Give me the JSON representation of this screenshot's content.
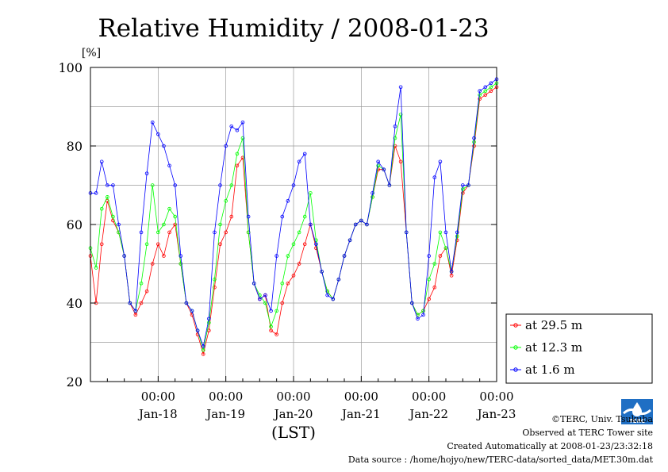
{
  "chart_data": {
    "type": "line",
    "title": "Relative Humidity / 2008-01-23",
    "ylabel": "[%]",
    "xlabel": "(LST)",
    "ylim": [
      20,
      100
    ],
    "xlim": [
      0,
      144
    ],
    "yticks": [
      20,
      40,
      60,
      80,
      100
    ],
    "x_time_labels": [
      "00:00",
      "00:00",
      "00:00",
      "00:00",
      "00:00",
      "00:00"
    ],
    "x_date_labels": [
      "Jan-18",
      "Jan-19",
      "Jan-20",
      "Jan-21",
      "Jan-22",
      "Jan-23"
    ],
    "x_tick_hours": [
      24,
      48,
      72,
      96,
      120,
      144
    ],
    "grid": true,
    "legend_position": "right",
    "series": [
      {
        "name": "at 29.5 m",
        "color": "#ff0000",
        "x": [
          0,
          2,
          4,
          6,
          8,
          10,
          12,
          14,
          16,
          18,
          20,
          22,
          24,
          26,
          28,
          30,
          32,
          34,
          36,
          38,
          40,
          42,
          44,
          46,
          48,
          50,
          52,
          54,
          56,
          58,
          60,
          62,
          64,
          66,
          68,
          70,
          72,
          74,
          76,
          78,
          80,
          82,
          84,
          86,
          88,
          90,
          92,
          94,
          96,
          98,
          100,
          102,
          104,
          106,
          108,
          110,
          112,
          114,
          116,
          118,
          120,
          122,
          124,
          126,
          128,
          130,
          132,
          134,
          136,
          138,
          140,
          142,
          144
        ],
        "y": [
          52,
          40,
          55,
          66,
          61,
          58,
          52,
          40,
          37,
          40,
          43,
          50,
          55,
          52,
          58,
          60,
          50,
          40,
          37,
          32,
          27,
          33,
          44,
          55,
          58,
          62,
          75,
          77,
          58,
          45,
          41,
          42,
          33,
          32,
          40,
          45,
          47,
          50,
          55,
          60,
          54,
          48,
          43,
          41,
          46,
          52,
          56,
          60,
          61,
          60,
          67,
          74,
          74,
          70,
          80,
          76,
          58,
          40,
          37,
          38,
          41,
          44,
          52,
          54,
          47,
          56,
          68,
          70,
          80,
          92,
          93,
          94,
          95
        ]
      },
      {
        "name": "at 12.3 m",
        "color": "#00ff00",
        "x": [
          0,
          2,
          4,
          6,
          8,
          10,
          12,
          14,
          16,
          18,
          20,
          22,
          24,
          26,
          28,
          30,
          32,
          34,
          36,
          38,
          40,
          42,
          44,
          46,
          48,
          50,
          52,
          54,
          56,
          58,
          60,
          62,
          64,
          66,
          68,
          70,
          72,
          74,
          76,
          78,
          80,
          82,
          84,
          86,
          88,
          90,
          92,
          94,
          96,
          98,
          100,
          102,
          104,
          106,
          108,
          110,
          112,
          114,
          116,
          118,
          120,
          122,
          124,
          126,
          128,
          130,
          132,
          134,
          136,
          138,
          140,
          142,
          144
        ],
        "y": [
          54,
          49,
          64,
          67,
          62,
          58,
          52,
          40,
          38,
          45,
          55,
          70,
          58,
          60,
          64,
          62,
          50,
          40,
          38,
          33,
          28,
          35,
          46,
          60,
          66,
          70,
          78,
          82,
          58,
          45,
          42,
          40,
          34,
          38,
          45,
          52,
          55,
          58,
          62,
          68,
          56,
          48,
          43,
          41,
          46,
          52,
          56,
          60,
          61,
          60,
          67,
          75,
          74,
          70,
          82,
          88,
          58,
          40,
          37,
          38,
          46,
          50,
          58,
          54,
          48,
          57,
          69,
          70,
          81,
          93,
          94,
          95,
          96
        ]
      },
      {
        "name": "at 1.6 m",
        "color": "#0000ff",
        "x": [
          0,
          2,
          4,
          6,
          8,
          10,
          12,
          14,
          16,
          18,
          20,
          22,
          24,
          26,
          28,
          30,
          32,
          34,
          36,
          38,
          40,
          42,
          44,
          46,
          48,
          50,
          52,
          54,
          56,
          58,
          60,
          62,
          64,
          66,
          68,
          70,
          72,
          74,
          76,
          78,
          80,
          82,
          84,
          86,
          88,
          90,
          92,
          94,
          96,
          98,
          100,
          102,
          104,
          106,
          108,
          110,
          112,
          114,
          116,
          118,
          120,
          122,
          124,
          126,
          128,
          130,
          132,
          134,
          136,
          138,
          140,
          142,
          144
        ],
        "y": [
          68,
          68,
          76,
          70,
          70,
          60,
          52,
          40,
          38,
          58,
          73,
          86,
          83,
          80,
          75,
          70,
          52,
          40,
          38,
          33,
          29,
          36,
          58,
          70,
          80,
          85,
          84,
          86,
          62,
          45,
          41,
          42,
          38,
          52,
          62,
          66,
          70,
          76,
          78,
          60,
          55,
          48,
          42,
          41,
          46,
          52,
          56,
          60,
          61,
          60,
          68,
          76,
          74,
          70,
          85,
          95,
          58,
          40,
          36,
          37,
          52,
          72,
          76,
          58,
          48,
          58,
          70,
          70,
          82,
          94,
          95,
          96,
          97
        ]
      }
    ]
  },
  "footer": {
    "copyright": "©TERC, Univ. Tsukuba",
    "observed": "Observed at TERC Tower site",
    "created": "Created Automatically at 2008-01-23/23:32:18",
    "source": "Data source : /home/hojyo/new/TERC-data/sorted_data/MET.30m.dat"
  },
  "logo": {
    "text": "TERC",
    "color": "#1f6fc4"
  }
}
